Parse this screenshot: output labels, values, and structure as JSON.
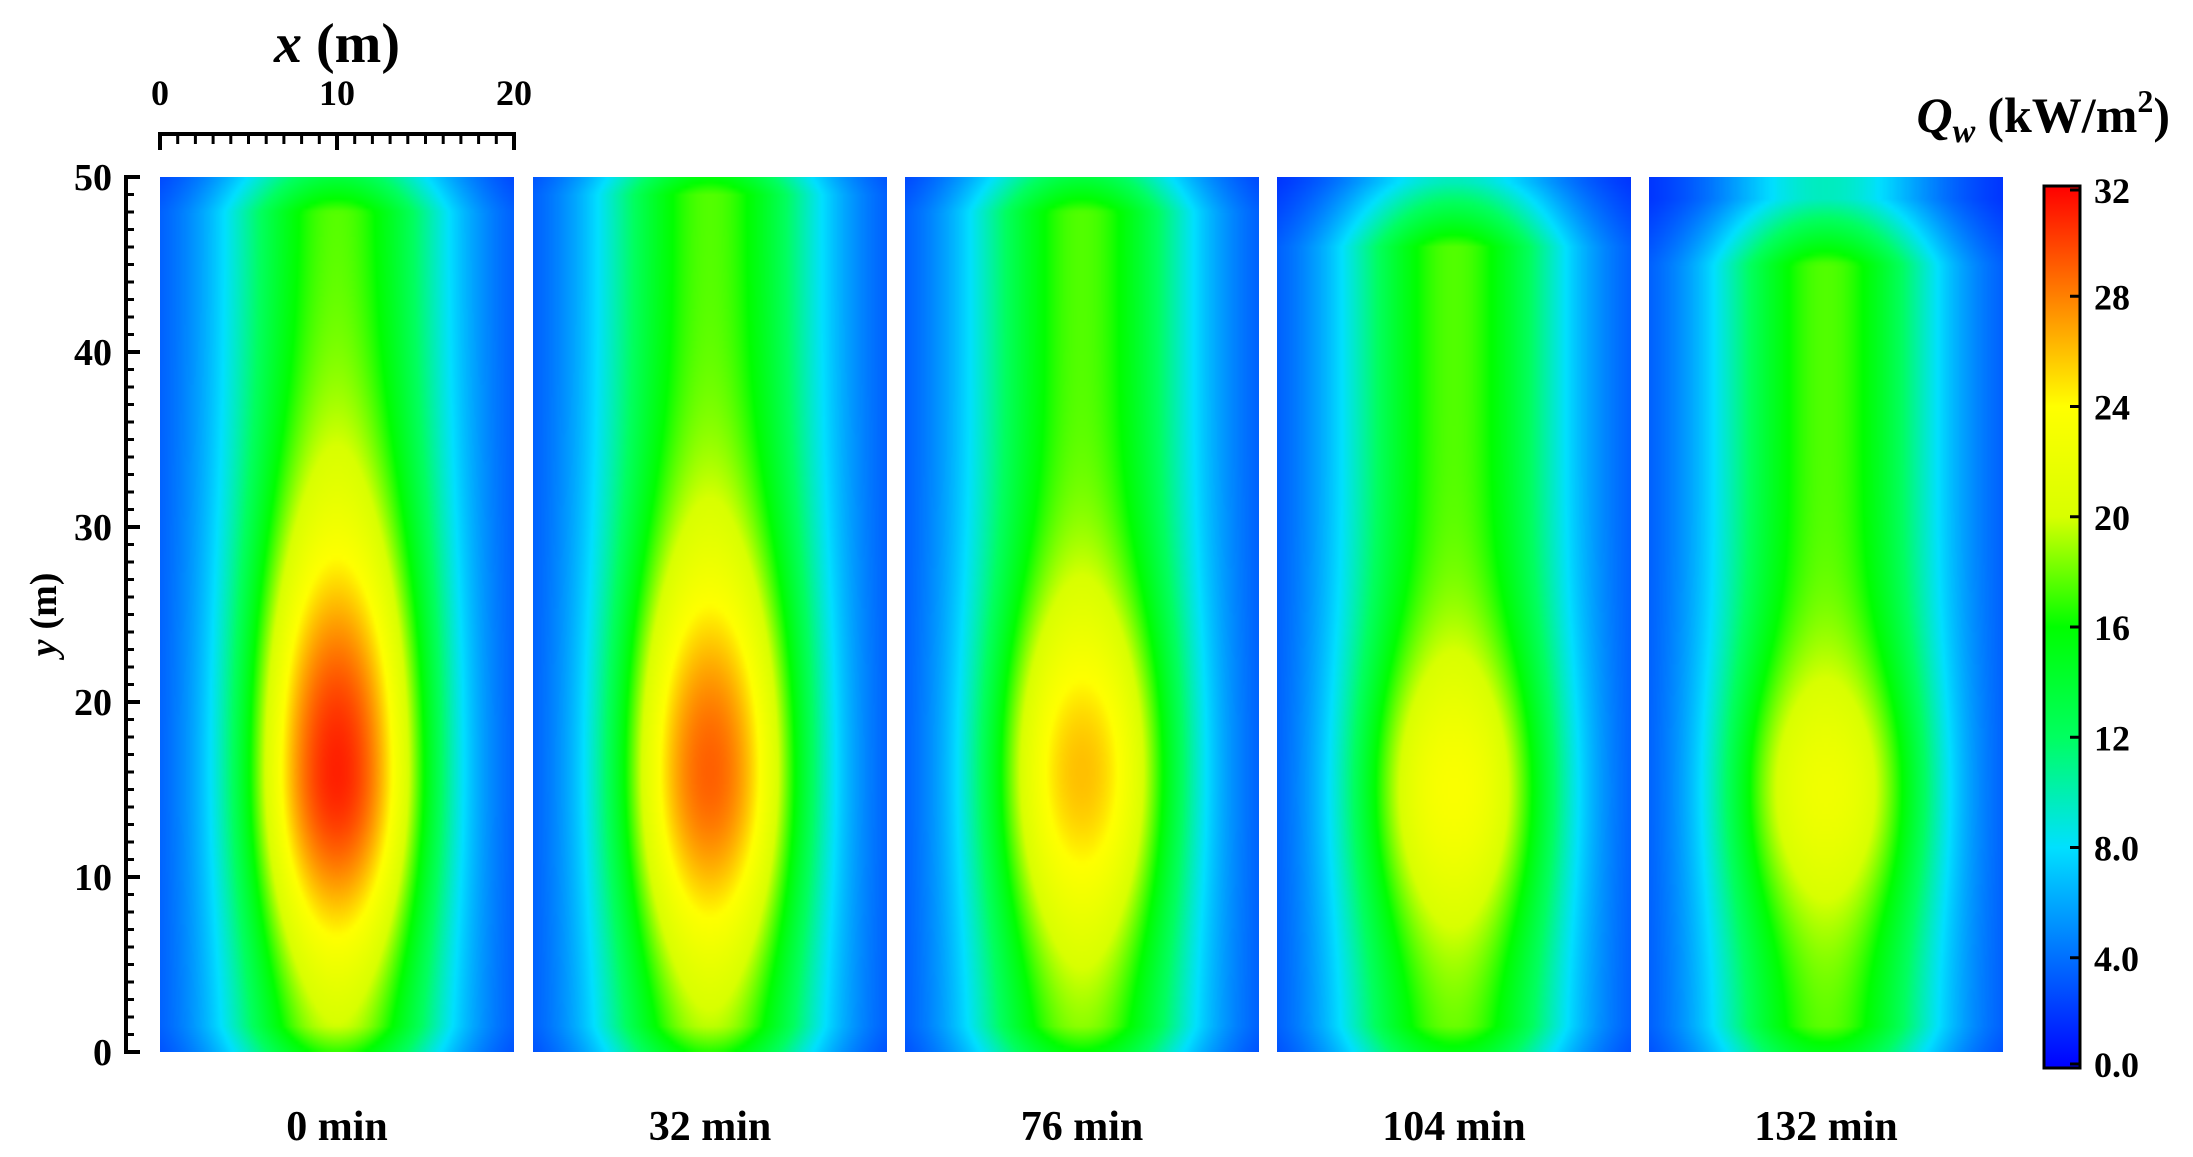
{
  "chart_data": {
    "type": "heatmap",
    "x_axis": {
      "label_var": "x",
      "label_unit": "(m)",
      "range": [
        0,
        20
      ],
      "ticks": [
        "0",
        "10",
        "20"
      ]
    },
    "y_axis": {
      "label_var": "y",
      "label_unit": "(m)",
      "range": [
        0,
        50
      ],
      "ticks": [
        "0",
        "10",
        "20",
        "30",
        "40",
        "50"
      ]
    },
    "colorbar": {
      "label_var": "Q",
      "label_sub": "w",
      "label_unit": "(kW/m",
      "label_sup": "2",
      "label_close": ")",
      "range": [
        0,
        32
      ],
      "ticks": [
        "0.0",
        "4.0",
        "8.0",
        "12",
        "16",
        "20",
        "24",
        "28",
        "32"
      ],
      "colors": [
        "#0000ff",
        "#0070ff",
        "#00e0ff",
        "#00ff60",
        "#00ff00",
        "#d8ff00",
        "#ffff00",
        "#ff8000",
        "#ff0000"
      ]
    },
    "panels": [
      {
        "label": "0 min",
        "peak": 32,
        "peak_y": 16,
        "spread_up": 17,
        "spread_down": 13,
        "sigma_x": 3.0,
        "green_top": 48
      },
      {
        "label": "32 min",
        "peak": 30,
        "peak_y": 16,
        "spread_up": 15,
        "spread_down": 13,
        "sigma_x": 3.0,
        "green_top": 49
      },
      {
        "label": "76 min",
        "peak": 27,
        "peak_y": 16,
        "spread_up": 12,
        "spread_down": 12,
        "sigma_x": 3.0,
        "green_top": 48
      },
      {
        "label": "104 min",
        "peak": 24.5,
        "peak_y": 15,
        "spread_up": 10,
        "spread_down": 10,
        "sigma_x": 3.1,
        "green_top": 46
      },
      {
        "label": "132 min",
        "peak": 23.5,
        "peak_y": 15,
        "spread_up": 9,
        "spread_down": 9,
        "sigma_x": 3.1,
        "green_top": 45
      }
    ]
  }
}
